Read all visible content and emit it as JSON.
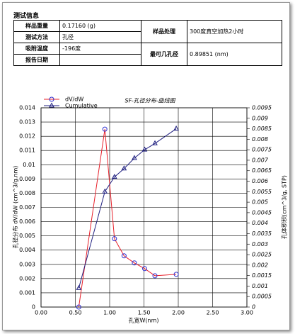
{
  "info": {
    "heading": "测试信息",
    "table": {
      "rows": [
        [
          "样品重量",
          "0.17160 (g)",
          "样品处理",
          "300度真空加热2小时"
        ],
        [
          "测试方法",
          "孔径"
        ],
        [
          "吸附温度",
          "-196度",
          "最可几孔径",
          "0.89851 (nm)"
        ],
        [
          "报告日期"
        ]
      ]
    }
  },
  "chart_data": {
    "type": "line",
    "title": "SF-孔径分布-曲线图",
    "x_label": "孔宽W(nm)",
    "y_label": "孔径分布 dV/dW (cm^3/g.nm)",
    "y2_label": "孔体积积(cm^3/g, STP)",
    "x": [
      0.55,
      0.93,
      1.07,
      1.21,
      1.36,
      1.51,
      1.66,
      1.97
    ],
    "series": [
      {
        "name": "dV/dW",
        "color": "#e8202a",
        "marker": "circle",
        "marker_color": "#3030d0",
        "axis": "y",
        "values": [
          0,
          0.0125,
          0.0048,
          0.0036,
          0.0031,
          0.0027,
          0.0022,
          0.0023
        ]
      },
      {
        "name": "Cumulative",
        "color": "#202080",
        "marker": "triangle",
        "marker_color": "#202080",
        "axis": "y2",
        "values": [
          0.0009,
          0.0055,
          0.0062,
          0.0066,
          0.0071,
          0.0075,
          0.0078,
          0.0085
        ]
      }
    ],
    "xlim": [
      0,
      3
    ],
    "xticks": [
      {
        "value": 0,
        "label": "0.00"
      },
      {
        "value": 0.5,
        "label": "0.50"
      },
      {
        "value": 1,
        "label": "1.00"
      },
      {
        "value": 1.5,
        "label": "1.50"
      },
      {
        "value": 2,
        "label": "2.00"
      },
      {
        "value": 2.5,
        "label": "2.50"
      },
      {
        "value": 3,
        "label": "3.00"
      }
    ],
    "ylim": [
      0,
      0.014
    ],
    "yticks": [
      0,
      0.001,
      0.002,
      0.003,
      0.004,
      0.005,
      0.006,
      0.007,
      0.008,
      0.009,
      0.01,
      0.011,
      0.012,
      0.013,
      0.014
    ],
    "y2lim": [
      0,
      0.0095
    ],
    "y2ticks": [
      0,
      0.0005,
      0.001,
      0.0015,
      0.002,
      0.0025,
      0.003,
      0.0035,
      0.004,
      0.0045,
      0.005,
      0.0055,
      0.006,
      0.0065,
      0.007,
      0.0075,
      0.008,
      0.0085,
      0.009,
      0.0095
    ],
    "grid": true,
    "legend": "top-left"
  }
}
